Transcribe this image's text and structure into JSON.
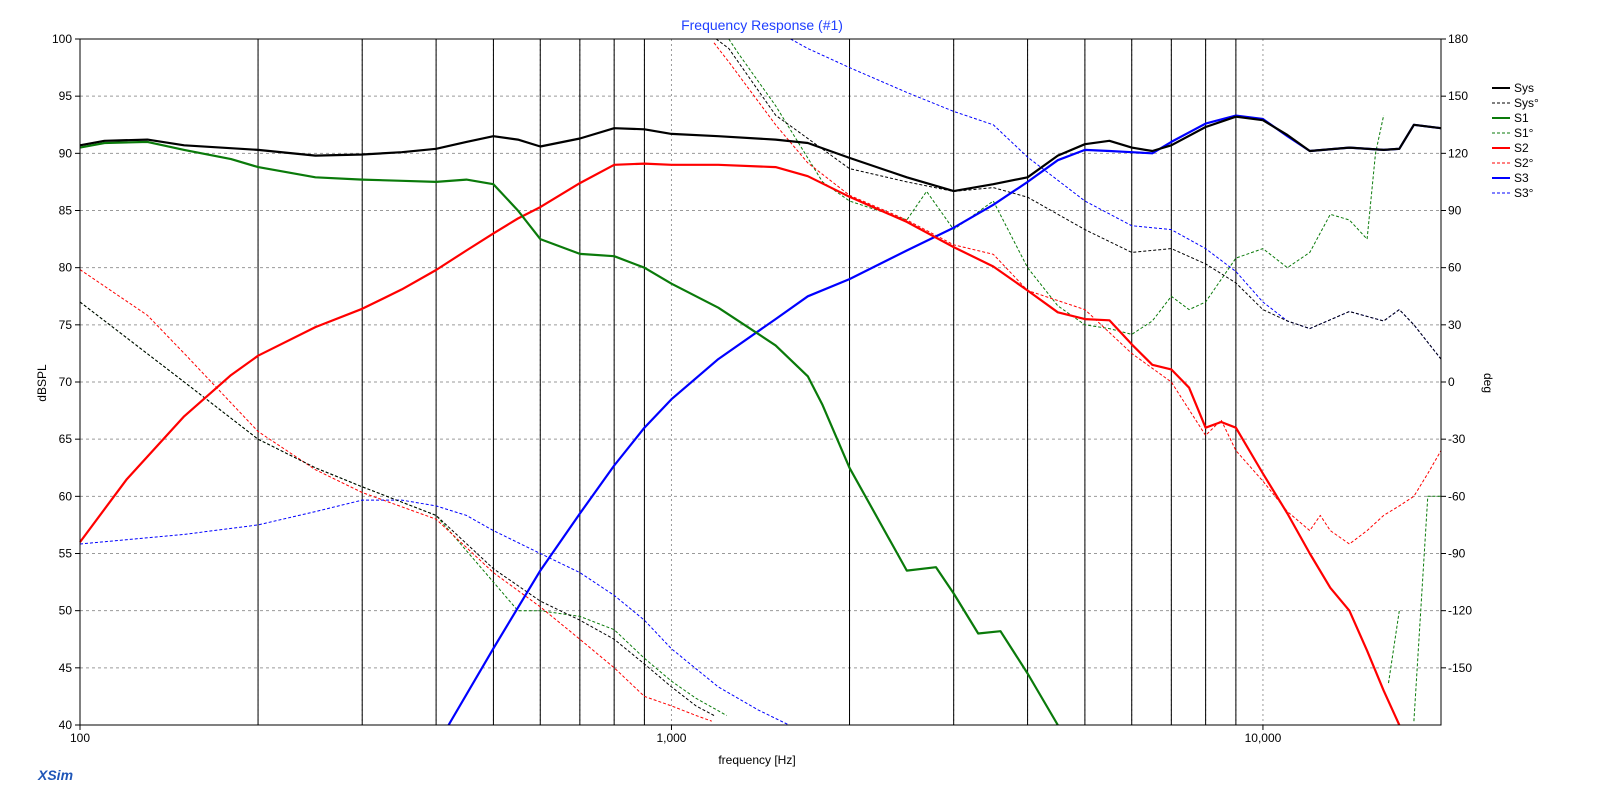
{
  "app": {
    "watermark": "XSim"
  },
  "chart_data": {
    "type": "line",
    "title": "Frequency Response (#1)",
    "xlabel": "frequency [Hz]",
    "ylabel_left": "dBSPL",
    "ylabel_right": "deg",
    "x_scale": "log",
    "xlim": [
      100,
      20000
    ],
    "ylim_left": [
      40,
      100
    ],
    "ylim_right": [
      -180,
      180
    ],
    "x_tick_labels": [
      {
        "value": 100,
        "label": "100"
      },
      {
        "value": 1000,
        "label": "1,000"
      },
      {
        "value": 10000,
        "label": "10,000"
      }
    ],
    "y_ticks_left": [
      40,
      45,
      50,
      55,
      60,
      65,
      70,
      75,
      80,
      85,
      90,
      95,
      100
    ],
    "y_ticks_right": [
      -150,
      -120,
      -90,
      -60,
      -30,
      0,
      30,
      60,
      90,
      120,
      150,
      180
    ],
    "vertical_markers": [
      200,
      300,
      400,
      500,
      600,
      700,
      800,
      900,
      2000,
      3000,
      4000,
      5000,
      6000,
      7000,
      8000,
      9000
    ],
    "grid": true,
    "legend_position": "right",
    "colors": {
      "title": "#1f3fff",
      "grid": "#9a9a9a",
      "axis": "#000000",
      "sys": "#000000",
      "s1": "#0a7a0a",
      "s2": "#ff0000",
      "s3": "#0000ff",
      "watermark": "#1f56b8"
    },
    "series": [
      {
        "name": "Sys",
        "axis": "left",
        "style": "solid",
        "color": "#000000",
        "x": [
          100,
          110,
          130,
          150,
          200,
          250,
          300,
          350,
          400,
          450,
          500,
          550,
          600,
          700,
          800,
          900,
          1000,
          1200,
          1500,
          1700,
          2000,
          2500,
          3000,
          3500,
          4000,
          4500,
          5000,
          5500,
          6000,
          6500,
          7000,
          8000,
          9000,
          10000,
          11000,
          12000,
          14000,
          16000,
          17000,
          18000,
          20000
        ],
        "y": [
          90.7,
          91.1,
          91.2,
          90.7,
          90.3,
          89.8,
          89.9,
          90.1,
          90.4,
          91.0,
          91.5,
          91.2,
          90.6,
          91.3,
          92.2,
          92.1,
          91.7,
          91.5,
          91.2,
          90.9,
          89.6,
          87.9,
          86.7,
          87.3,
          87.9,
          89.8,
          90.8,
          91.1,
          90.5,
          90.2,
          90.7,
          92.3,
          93.2,
          92.9,
          91.6,
          90.2,
          90.5,
          90.3,
          90.4,
          92.5,
          92.2
        ]
      },
      {
        "name": "Sys°",
        "axis": "right",
        "style": "dashed",
        "color": "#000000",
        "x": [
          100,
          150,
          200,
          250,
          300,
          400,
          500,
          600,
          700,
          800,
          900,
          1000,
          1100,
          1180,
          1190,
          1250,
          1500,
          2000,
          2500,
          3000,
          3500,
          4000,
          5000,
          6000,
          7000,
          8000,
          9000,
          10000,
          11000,
          12000,
          14000,
          16000,
          17000,
          18000,
          20000
        ],
        "y": [
          42,
          0,
          -30,
          -45,
          -55,
          -70,
          -98,
          -115,
          -125,
          -135,
          -148,
          -160,
          -170,
          -175,
          180,
          175,
          140,
          112,
          105,
          100,
          102,
          97,
          80,
          68,
          70,
          62,
          52,
          38,
          32,
          28,
          37,
          32,
          38,
          30,
          12
        ]
      },
      {
        "name": "S1",
        "axis": "left",
        "style": "solid",
        "color": "#0a7a0a",
        "x": [
          100,
          110,
          130,
          150,
          180,
          200,
          250,
          300,
          350,
          400,
          450,
          500,
          550,
          600,
          700,
          800,
          900,
          1000,
          1200,
          1500,
          1700,
          1800,
          2000,
          2500,
          2800,
          3000,
          3300,
          3600,
          4000,
          4500
        ],
        "y": [
          90.5,
          90.9,
          91.0,
          90.3,
          89.5,
          88.8,
          87.9,
          87.7,
          87.6,
          87.5,
          87.7,
          87.3,
          85.0,
          82.5,
          81.2,
          81.0,
          80.0,
          78.6,
          76.5,
          73.2,
          70.5,
          68.0,
          62.5,
          53.5,
          53.8,
          51.5,
          48.0,
          48.2,
          44.5,
          40.0
        ]
      },
      {
        "name": "S1°",
        "axis": "right",
        "style": "dashed",
        "color": "#0a7a0a",
        "x": [
          100,
          150,
          200,
          250,
          300,
          400,
          500,
          550,
          600,
          700,
          800,
          900,
          1000,
          1100,
          1240,
          1250,
          1300,
          1500,
          1800,
          2000,
          2500,
          2700,
          3000,
          3500,
          4000,
          4500,
          5000,
          5500,
          6000,
          6500,
          7000,
          7500,
          8000,
          9000,
          10000,
          11000,
          12000,
          13000,
          14000,
          15000,
          15500,
          16000,
          16300,
          17000,
          17700,
          18000,
          19000,
          20000
        ],
        "y": [
          42,
          0,
          -30,
          -45,
          -55,
          -70,
          -105,
          -120,
          -120,
          -123,
          -130,
          -145,
          -157,
          -166,
          -175,
          180,
          172,
          145,
          105,
          95,
          85,
          100,
          80,
          95,
          60,
          40,
          30,
          28,
          25,
          32,
          45,
          38,
          42,
          65,
          70,
          60,
          68,
          88,
          85,
          75,
          120,
          140,
          -158,
          -120,
          140,
          -178,
          -60,
          -60
        ]
      },
      {
        "name": "S2",
        "axis": "left",
        "style": "solid",
        "color": "#ff0000",
        "x": [
          100,
          120,
          150,
          180,
          200,
          250,
          300,
          350,
          400,
          450,
          500,
          550,
          600,
          700,
          800,
          900,
          1000,
          1200,
          1500,
          1700,
          2000,
          2500,
          3000,
          3500,
          4000,
          4500,
          5000,
          5500,
          6000,
          6500,
          7000,
          7500,
          8000,
          8500,
          9000,
          10000,
          11000,
          12000,
          13000,
          14000,
          15000,
          16000,
          17000
        ],
        "y": [
          56.0,
          61.5,
          67.0,
          70.6,
          72.3,
          74.8,
          76.4,
          78.1,
          79.8,
          81.5,
          83.0,
          84.3,
          85.3,
          87.4,
          89.0,
          89.1,
          89.0,
          89.0,
          88.8,
          88.0,
          86.2,
          84.0,
          81.8,
          80.1,
          78.0,
          76.1,
          75.5,
          75.4,
          73.3,
          71.5,
          71.1,
          69.5,
          66.0,
          66.5,
          66.0,
          62.0,
          58.5,
          55.0,
          52.0,
          50.0,
          46.5,
          43.0,
          40.0
        ]
      },
      {
        "name": "S2°",
        "axis": "right",
        "style": "dashed",
        "color": "#ff0000",
        "x": [
          100,
          130,
          150,
          200,
          250,
          300,
          400,
          500,
          600,
          700,
          800,
          900,
          1000,
          1100,
          1170,
          1180,
          1200,
          1250,
          1500,
          1700,
          2000,
          2500,
          3000,
          3500,
          4000,
          5000,
          6000,
          7000,
          8000,
          8500,
          9000,
          10000,
          11000,
          12000,
          12500,
          13000,
          14000,
          15000,
          16000,
          17000,
          18000,
          19000,
          20000
        ],
        "y": [
          59,
          35,
          15,
          -26,
          -46,
          -58,
          -72,
          -100,
          -118,
          -135,
          -150,
          -165,
          -170,
          -175,
          -178,
          178,
          175,
          168,
          135,
          115,
          98,
          85,
          72,
          67,
          48,
          38,
          15,
          0,
          -28,
          -20,
          -36,
          -52,
          -68,
          -78,
          -70,
          -78,
          -85,
          -78,
          -70,
          -65,
          -60,
          -48,
          -36
        ]
      },
      {
        "name": "S3",
        "axis": "left",
        "style": "solid",
        "color": "#0000ff",
        "x": [
          420,
          500,
          600,
          700,
          800,
          900,
          1000,
          1200,
          1500,
          1700,
          2000,
          2500,
          3000,
          3500,
          4000,
          4500,
          5000,
          5500,
          6000,
          6500,
          7000,
          8000,
          9000,
          10000,
          11000,
          12000,
          14000,
          16000,
          17000,
          18000,
          20000
        ],
        "y": [
          40.0,
          46.7,
          53.5,
          58.5,
          62.7,
          66.0,
          68.5,
          72.0,
          75.5,
          77.5,
          79.0,
          81.5,
          83.5,
          85.5,
          87.5,
          89.4,
          90.3,
          90.2,
          90.1,
          90.0,
          91.0,
          92.6,
          93.3,
          93.0,
          91.5,
          90.2,
          90.5,
          90.3,
          90.4,
          92.5,
          92.2
        ]
      },
      {
        "name": "S3°",
        "axis": "right",
        "style": "dashed",
        "color": "#0000ff",
        "x": [
          100,
          150,
          200,
          250,
          300,
          350,
          400,
          450,
          500,
          600,
          700,
          800,
          900,
          1000,
          1200,
          1400,
          1580,
          1590,
          1700,
          2000,
          2500,
          3000,
          3500,
          4000,
          5000,
          6000,
          7000,
          8000,
          9000,
          10000,
          11000,
          12000,
          14000,
          16000,
          17000,
          18000,
          20000
        ],
        "y": [
          -85,
          -80,
          -75,
          -68,
          -62,
          -62,
          -65,
          -70,
          -78,
          -90,
          -100,
          -112,
          -125,
          -140,
          -160,
          -172,
          -180,
          180,
          175,
          165,
          152,
          142,
          135,
          118,
          95,
          82,
          80,
          70,
          58,
          42,
          32,
          28,
          37,
          32,
          38,
          30,
          12
        ]
      }
    ],
    "legend_entries": [
      "Sys",
      "Sys°",
      "S1",
      "S1°",
      "S2",
      "S2°",
      "S3",
      "S3°"
    ]
  }
}
